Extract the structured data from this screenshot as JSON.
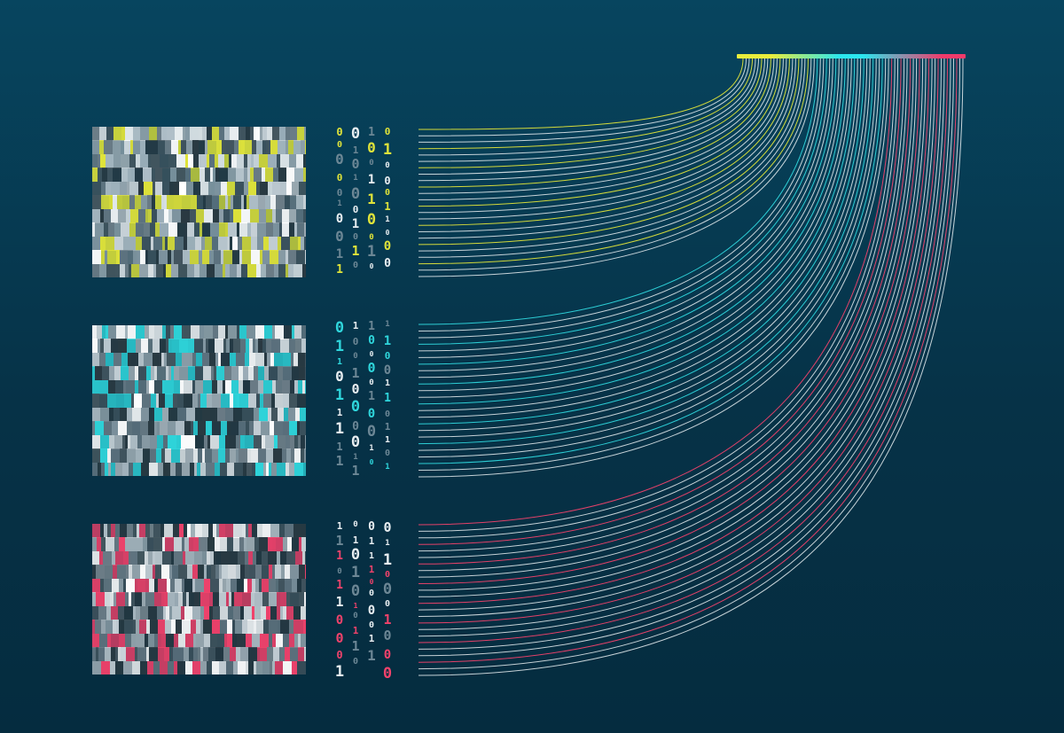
{
  "palette": {
    "background": "#063247",
    "line_white": "#e9eef1",
    "yellow": "#dfe33a",
    "cyan": "#2fd6dc",
    "pink": "#f0426b",
    "neutral": [
      "#ffffff",
      "#c8d2d8",
      "#9aa9b1",
      "#6c7d87",
      "#44565f",
      "#2a3a42"
    ]
  },
  "gradient_bar": {
    "colors": [
      "#e9ec3c",
      "#2be6ee",
      "#f03a6a"
    ]
  },
  "groups": [
    {
      "id": "yellow",
      "accent": "#dfe33a"
    },
    {
      "id": "cyan",
      "accent": "#2fd6dc"
    },
    {
      "id": "pink",
      "accent": "#f0426b"
    }
  ],
  "binary_symbols": [
    "0",
    "1"
  ]
}
